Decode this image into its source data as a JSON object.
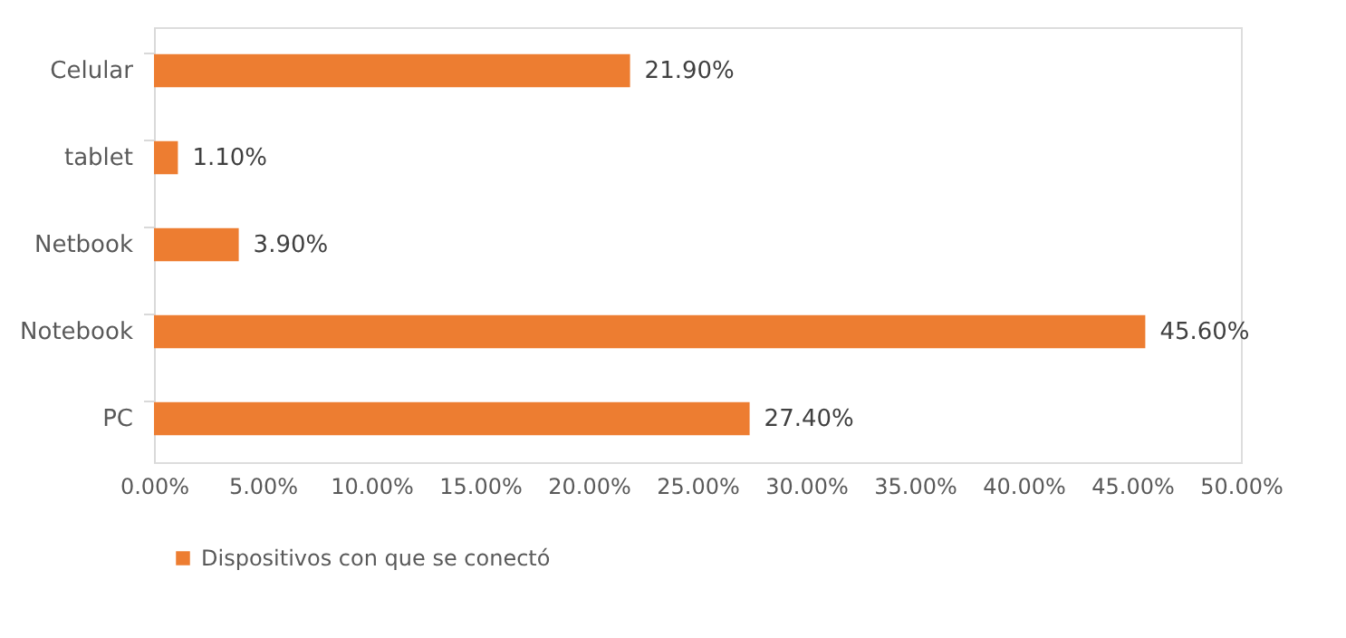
{
  "chart_data": {
    "type": "bar",
    "orientation": "horizontal",
    "categories": [
      "Celular",
      "tablet",
      "Netbook",
      "Notebook",
      "PC"
    ],
    "series": [
      {
        "name": "Dispositivos con que se conectó",
        "color": "#ed7d31",
        "values": [
          21.9,
          1.1,
          3.9,
          45.6,
          27.4
        ]
      }
    ],
    "value_labels": [
      "21.90%",
      "1.10%",
      "3.90%",
      "45.60%",
      "27.40%"
    ],
    "xlim": [
      0,
      50
    ],
    "xticks": [
      {
        "value": 0,
        "label": "0.00%"
      },
      {
        "value": 5,
        "label": "5.00%"
      },
      {
        "value": 10,
        "label": "10.00%"
      },
      {
        "value": 15,
        "label": "15.00%"
      },
      {
        "value": 20,
        "label": "20.00%"
      },
      {
        "value": 25,
        "label": "25.00%"
      },
      {
        "value": 30,
        "label": "30.00%"
      },
      {
        "value": 35,
        "label": "35.00%"
      },
      {
        "value": 40,
        "label": "40.00%"
      },
      {
        "value": 45,
        "label": "45.00%"
      },
      {
        "value": 50,
        "label": "50.00%"
      }
    ],
    "grid": false,
    "legend": "bottom"
  }
}
